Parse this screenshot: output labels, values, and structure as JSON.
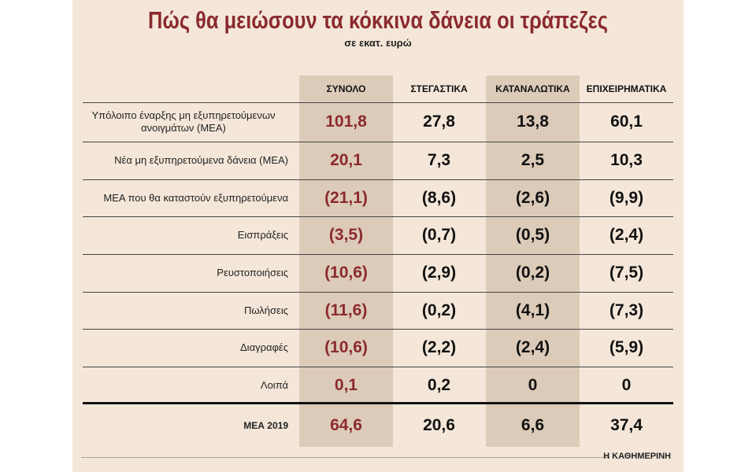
{
  "header": {
    "title": "Πώς θα μειώσουν τα κόκκινα δάνεια οι τράπεζες",
    "subtitle": "σε εκατ. ευρώ"
  },
  "table": {
    "columns": [
      "ΣΥΝΟΛΟ",
      "ΣΤΕΓΑΣΤΙΚΑ",
      "ΚΑΤΑΝΑΛΩΤΙΚΑ",
      "ΕΠΙΧΕΙΡΗΜΑΤΙΚΑ"
    ],
    "rows": [
      {
        "label": "Υπόλοιπο έναρξης μη εξυπηρετούμενων ανοιγμάτων (ΜΕΑ)",
        "values": [
          "101,8",
          "27,8",
          "13,8",
          "60,1"
        ]
      },
      {
        "label": "Νέα μη εξυπηρετούμενα δάνεια (ΜΕΑ)",
        "values": [
          "20,1",
          "7,3",
          "2,5",
          "10,3"
        ]
      },
      {
        "label": "ΜΕΑ που θα καταστούν εξυπηρετούμενα",
        "values": [
          "(21,1)",
          "(8,6)",
          "(2,6)",
          "(9,9)"
        ]
      },
      {
        "label": "Εισπράξεις",
        "values": [
          "(3,5)",
          "(0,7)",
          "(0,5)",
          "(2,4)"
        ]
      },
      {
        "label": "Ρευστοποιήσεις",
        "values": [
          "(10,6)",
          "(2,9)",
          "(0,2)",
          "(7,5)"
        ]
      },
      {
        "label": "Πωλήσεις",
        "values": [
          "(11,6)",
          "(0,2)",
          "(4,1)",
          "(7,3)"
        ]
      },
      {
        "label": "Διαγραφές",
        "values": [
          "(10,6)",
          "(2,2)",
          "(2,4)",
          "(5,9)"
        ]
      },
      {
        "label": "Λοιπά",
        "values": [
          "0,1",
          "0,2",
          "0",
          "0"
        ]
      },
      {
        "label": "ΜΕΑ 2019",
        "values": [
          "64,6",
          "20,6",
          "6,6",
          "37,4"
        ]
      }
    ]
  },
  "footer": {
    "source": "Η ΚΑΘΗΜΕΡΙΝΗ"
  }
}
